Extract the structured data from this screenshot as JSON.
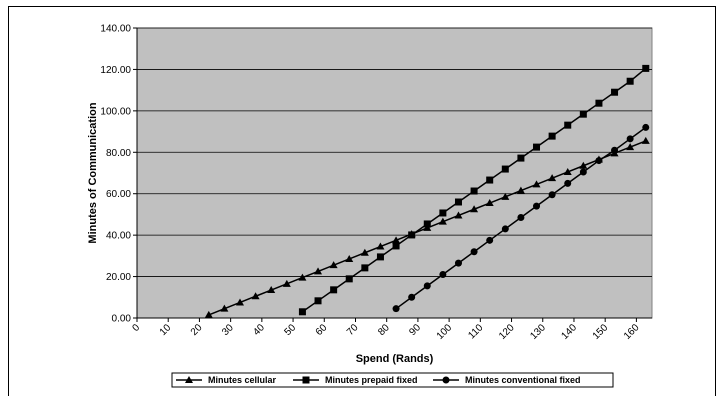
{
  "chart_data": {
    "type": "line",
    "title": "",
    "xlabel": "Spend (Rands)",
    "ylabel": "Minutes of Communication",
    "xlim": [
      0,
      165
    ],
    "ylim": [
      0,
      140
    ],
    "x_ticks": [
      0,
      10,
      20,
      30,
      40,
      50,
      60,
      70,
      80,
      90,
      100,
      110,
      120,
      130,
      140,
      150,
      160
    ],
    "y_ticks": [
      "0.00",
      "20.00",
      "40.00",
      "60.00",
      "80.00",
      "100.00",
      "120.00",
      "140.00"
    ],
    "y_tick_values": [
      0,
      20,
      40,
      60,
      80,
      100,
      120,
      140
    ],
    "grid": "horizontal",
    "legend_position": "bottom",
    "series": [
      {
        "name": "Minutes cellular",
        "marker": "triangle",
        "x": [
          23,
          28,
          33,
          38,
          43,
          48,
          53,
          58,
          63,
          68,
          73,
          78,
          83,
          88,
          93,
          98,
          103,
          108,
          113,
          118,
          123,
          128,
          133,
          138,
          143,
          148,
          153,
          158,
          163
        ],
        "y": [
          1.5,
          4.5,
          7.5,
          10.5,
          13.5,
          16.5,
          19.5,
          22.5,
          25.5,
          28.5,
          31.5,
          34.5,
          37.5,
          40.5,
          43.5,
          46.5,
          49.5,
          52.5,
          55.5,
          58.5,
          61.5,
          64.5,
          67.5,
          70.5,
          73.5,
          76.5,
          79.5,
          82.5,
          85.5
        ]
      },
      {
        "name": "Minutes prepaid fixed",
        "marker": "square",
        "x": [
          53,
          58,
          63,
          68,
          73,
          78,
          83,
          88,
          93,
          98,
          103,
          108,
          113,
          118,
          123,
          128,
          133,
          138,
          143,
          148,
          153,
          158,
          163
        ],
        "y": [
          3,
          8.3,
          13.6,
          18.9,
          24.2,
          29.5,
          34.8,
          40.1,
          45.4,
          50.7,
          56,
          61.3,
          66.6,
          71.9,
          77.2,
          82.5,
          87.8,
          93.1,
          98.4,
          103.7,
          109,
          114.3,
          120.5
        ]
      },
      {
        "name": "Minutes conventional fixed",
        "marker": "circle",
        "x": [
          83,
          88,
          93,
          98,
          103,
          108,
          113,
          118,
          123,
          128,
          133,
          138,
          143,
          148,
          153,
          158,
          163
        ],
        "y": [
          4.5,
          10,
          15.5,
          21,
          26.5,
          32,
          37.5,
          43,
          48.5,
          54,
          59.5,
          65,
          70.5,
          76,
          81,
          86.5,
          92
        ]
      }
    ]
  }
}
